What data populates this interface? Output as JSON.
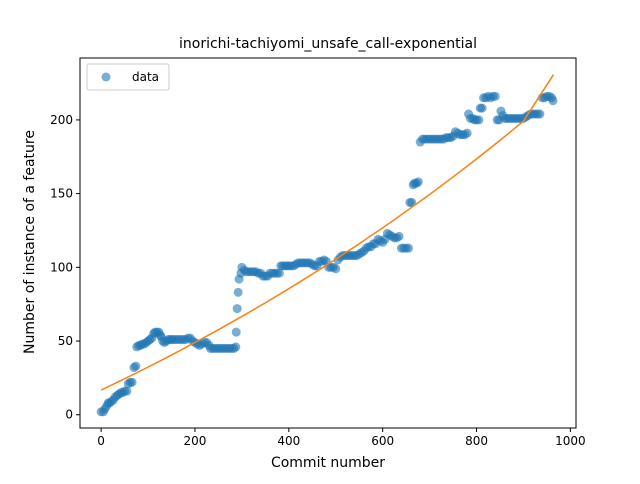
{
  "chart_data": {
    "type": "scatter",
    "title": "inorichi-tachiyomi_unsafe_call-exponential",
    "xlabel": "Commit number",
    "ylabel": "Number of instance of a feature",
    "xlim": [
      -45,
      1012
    ],
    "ylim": [
      -9,
      242
    ],
    "x_ticks": [
      0,
      200,
      400,
      600,
      800,
      1000
    ],
    "y_ticks": [
      0,
      50,
      100,
      150,
      200
    ],
    "legend": {
      "position": "top-left",
      "entries": [
        "data"
      ]
    },
    "colors": {
      "data": "#1f77b4",
      "fit": "#ff7f0e"
    },
    "series": [
      {
        "name": "data",
        "kind": "scatter",
        "points": [
          [
            0,
            2
          ],
          [
            5,
            2
          ],
          [
            8,
            4
          ],
          [
            12,
            6
          ],
          [
            15,
            8
          ],
          [
            18,
            8
          ],
          [
            22,
            9
          ],
          [
            26,
            10
          ],
          [
            30,
            12
          ],
          [
            34,
            13
          ],
          [
            38,
            14
          ],
          [
            42,
            15
          ],
          [
            46,
            15
          ],
          [
            50,
            16
          ],
          [
            55,
            16
          ],
          [
            58,
            21
          ],
          [
            62,
            22
          ],
          [
            66,
            22
          ],
          [
            70,
            32
          ],
          [
            74,
            33
          ],
          [
            76,
            46
          ],
          [
            80,
            47
          ],
          [
            84,
            47
          ],
          [
            88,
            48
          ],
          [
            92,
            48
          ],
          [
            96,
            49
          ],
          [
            100,
            50
          ],
          [
            104,
            51
          ],
          [
            108,
            52
          ],
          [
            112,
            55
          ],
          [
            115,
            56
          ],
          [
            119,
            56
          ],
          [
            123,
            56
          ],
          [
            126,
            54
          ],
          [
            128,
            53
          ],
          [
            131,
            50
          ],
          [
            135,
            49
          ],
          [
            139,
            50
          ],
          [
            143,
            51
          ],
          [
            147,
            51
          ],
          [
            151,
            51
          ],
          [
            155,
            51
          ],
          [
            160,
            51
          ],
          [
            165,
            51
          ],
          [
            170,
            51
          ],
          [
            175,
            51
          ],
          [
            180,
            51
          ],
          [
            185,
            52
          ],
          [
            190,
            52
          ],
          [
            195,
            50
          ],
          [
            200,
            49
          ],
          [
            205,
            48
          ],
          [
            210,
            47
          ],
          [
            215,
            48
          ],
          [
            220,
            49
          ],
          [
            225,
            49
          ],
          [
            230,
            47
          ],
          [
            233,
            45
          ],
          [
            238,
            45
          ],
          [
            243,
            45
          ],
          [
            248,
            45
          ],
          [
            253,
            45
          ],
          [
            258,
            45
          ],
          [
            263,
            45
          ],
          [
            268,
            45
          ],
          [
            273,
            45
          ],
          [
            278,
            45
          ],
          [
            283,
            45
          ],
          [
            287,
            46
          ],
          [
            288,
            56
          ],
          [
            290,
            72
          ],
          [
            292,
            83
          ],
          [
            294,
            92
          ],
          [
            298,
            96
          ],
          [
            300,
            100
          ],
          [
            305,
            98
          ],
          [
            310,
            97
          ],
          [
            315,
            97
          ],
          [
            320,
            97
          ],
          [
            325,
            97
          ],
          [
            330,
            97
          ],
          [
            335,
            96
          ],
          [
            340,
            96
          ],
          [
            345,
            94
          ],
          [
            350,
            94
          ],
          [
            355,
            94
          ],
          [
            360,
            96
          ],
          [
            365,
            96
          ],
          [
            370,
            96
          ],
          [
            375,
            96
          ],
          [
            380,
            96
          ],
          [
            383,
            101
          ],
          [
            387,
            101
          ],
          [
            392,
            101
          ],
          [
            396,
            101
          ],
          [
            400,
            101
          ],
          [
            405,
            101
          ],
          [
            410,
            101
          ],
          [
            415,
            102
          ],
          [
            420,
            103
          ],
          [
            425,
            103
          ],
          [
            430,
            103
          ],
          [
            435,
            103
          ],
          [
            440,
            103
          ],
          [
            445,
            103
          ],
          [
            450,
            102
          ],
          [
            455,
            101
          ],
          [
            460,
            101
          ],
          [
            465,
            104
          ],
          [
            470,
            104
          ],
          [
            475,
            105
          ],
          [
            480,
            104
          ],
          [
            485,
            100
          ],
          [
            490,
            100
          ],
          [
            495,
            100
          ],
          [
            500,
            99
          ],
          [
            505,
            105
          ],
          [
            510,
            107
          ],
          [
            515,
            108
          ],
          [
            520,
            108
          ],
          [
            525,
            108
          ],
          [
            530,
            108
          ],
          [
            535,
            108
          ],
          [
            540,
            108
          ],
          [
            545,
            108
          ],
          [
            550,
            109
          ],
          [
            555,
            110
          ],
          [
            560,
            111
          ],
          [
            565,
            113
          ],
          [
            570,
            114
          ],
          [
            575,
            114
          ],
          [
            580,
            116
          ],
          [
            585,
            116
          ],
          [
            590,
            119
          ],
          [
            595,
            118
          ],
          [
            600,
            117
          ],
          [
            605,
            119
          ],
          [
            610,
            123
          ],
          [
            615,
            122
          ],
          [
            620,
            121
          ],
          [
            625,
            120
          ],
          [
            630,
            120
          ],
          [
            635,
            121
          ],
          [
            640,
            113
          ],
          [
            645,
            113
          ],
          [
            650,
            113
          ],
          [
            655,
            113
          ],
          [
            658,
            144
          ],
          [
            662,
            144
          ],
          [
            665,
            156
          ],
          [
            668,
            157
          ],
          [
            672,
            157
          ],
          [
            676,
            158
          ],
          [
            680,
            185
          ],
          [
            685,
            187
          ],
          [
            690,
            187
          ],
          [
            695,
            187
          ],
          [
            700,
            187
          ],
          [
            705,
            187
          ],
          [
            710,
            187
          ],
          [
            715,
            187
          ],
          [
            720,
            187
          ],
          [
            725,
            187
          ],
          [
            730,
            187
          ],
          [
            735,
            188
          ],
          [
            740,
            188
          ],
          [
            745,
            188
          ],
          [
            750,
            189
          ],
          [
            755,
            192
          ],
          [
            760,
            191
          ],
          [
            765,
            190
          ],
          [
            770,
            190
          ],
          [
            775,
            190
          ],
          [
            780,
            191
          ],
          [
            783,
            204
          ],
          [
            787,
            201
          ],
          [
            792,
            201
          ],
          [
            796,
            200
          ],
          [
            800,
            200
          ],
          [
            805,
            200
          ],
          [
            808,
            208
          ],
          [
            812,
            208
          ],
          [
            815,
            215
          ],
          [
            820,
            215
          ],
          [
            825,
            216
          ],
          [
            830,
            215
          ],
          [
            835,
            216
          ],
          [
            840,
            216
          ],
          [
            844,
            200
          ],
          [
            848,
            200
          ],
          [
            852,
            206
          ],
          [
            856,
            203
          ],
          [
            860,
            201
          ],
          [
            865,
            201
          ],
          [
            870,
            201
          ],
          [
            875,
            201
          ],
          [
            880,
            201
          ],
          [
            885,
            201
          ],
          [
            890,
            201
          ],
          [
            895,
            201
          ],
          [
            900,
            201
          ],
          [
            905,
            202
          ],
          [
            910,
            203
          ],
          [
            915,
            204
          ],
          [
            920,
            204
          ],
          [
            925,
            204
          ],
          [
            930,
            204
          ],
          [
            935,
            204
          ],
          [
            940,
            215
          ],
          [
            945,
            215
          ],
          [
            950,
            216
          ],
          [
            955,
            216
          ],
          [
            960,
            215
          ],
          [
            963,
            213
          ]
        ]
      },
      {
        "name": "",
        "kind": "line",
        "points": [
          [
            0,
            16.7
          ],
          [
            50,
            24.4
          ],
          [
            100,
            32.3
          ],
          [
            150,
            40.5
          ],
          [
            200,
            49.0
          ],
          [
            250,
            57.7
          ],
          [
            300,
            66.7
          ],
          [
            350,
            75.9
          ],
          [
            400,
            85.5
          ],
          [
            450,
            95.4
          ],
          [
            500,
            105.5
          ],
          [
            550,
            116.0
          ],
          [
            600,
            126.8
          ],
          [
            650,
            138.0
          ],
          [
            700,
            149.4
          ],
          [
            750,
            161.3
          ],
          [
            800,
            173.5
          ],
          [
            850,
            186.1
          ],
          [
            900,
            199.2
          ],
          [
            964,
            230.7
          ]
        ]
      }
    ]
  }
}
